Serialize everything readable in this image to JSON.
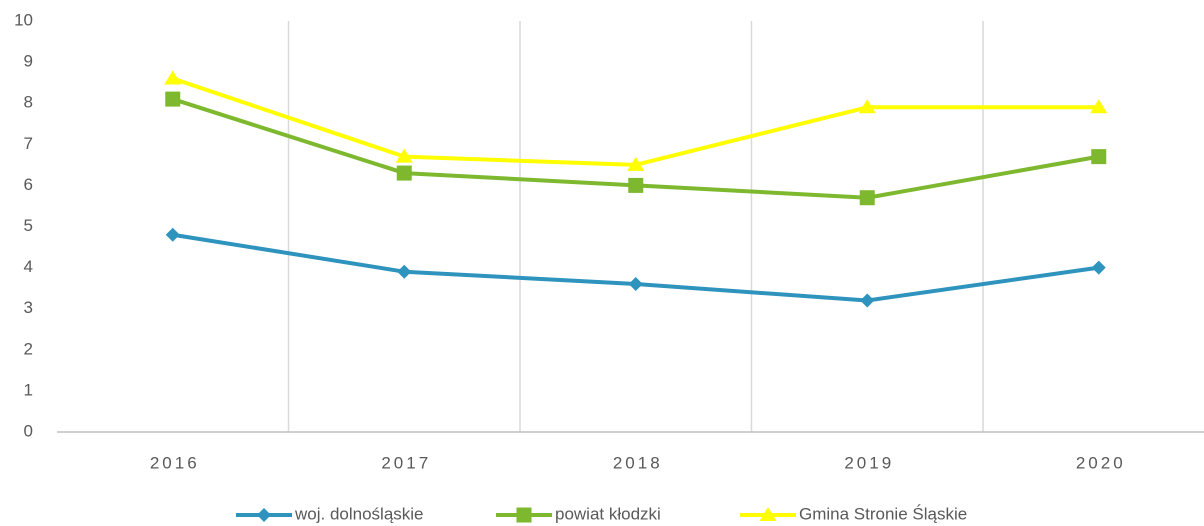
{
  "chart_data": {
    "type": "line",
    "categories": [
      "2016",
      "2017",
      "2018",
      "2019",
      "2020"
    ],
    "series": [
      {
        "name": "woj. dolnośląskie",
        "color": "#2e93bd",
        "marker": "diamond",
        "values": [
          4.8,
          3.9,
          3.6,
          3.2,
          4.0
        ]
      },
      {
        "name": "powiat kłodzki",
        "color": "#7db82f",
        "marker": "square",
        "values": [
          8.1,
          6.3,
          6.0,
          5.7,
          6.7
        ]
      },
      {
        "name": "Gmina Stronie Śląskie",
        "color": "#ffff00",
        "marker": "triangle",
        "values": [
          8.6,
          6.7,
          6.5,
          7.9,
          7.9
        ]
      }
    ],
    "ylim": [
      0,
      10
    ],
    "yticks": [
      0,
      1,
      2,
      3,
      4,
      5,
      6,
      7,
      8,
      9,
      10
    ],
    "legend": "bottom"
  }
}
